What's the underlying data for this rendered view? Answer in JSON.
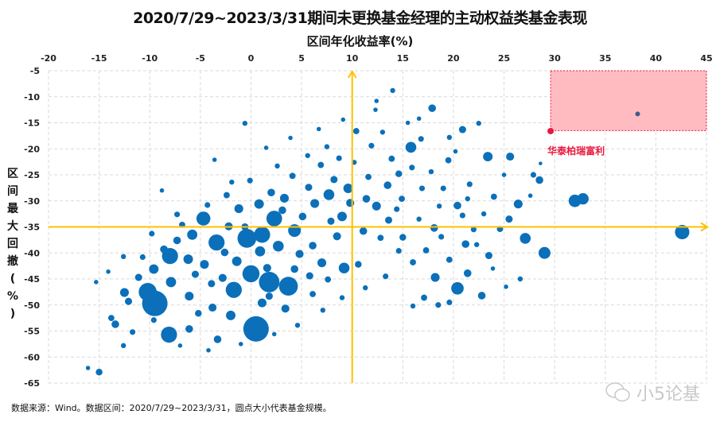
{
  "chart_data": {
    "type": "scatter",
    "title": "2020/7/29~2023/3/31期间未更换基金经理的主动权益类基金表现",
    "xlabel": "区间年化收益率(%)",
    "ylabel": "区间最大回撤(%)",
    "xlim": [
      -20,
      45
    ],
    "ylim": [
      -65,
      -5
    ],
    "xticks": [
      "-20",
      "-15",
      "-10",
      "-5",
      "0",
      "5",
      "10",
      "15",
      "20",
      "25",
      "30",
      "35",
      "40",
      "45"
    ],
    "yticks": [
      "-5",
      "-10",
      "-15",
      "-20",
      "-25",
      "-30",
      "-35",
      "-40",
      "-45",
      "-50",
      "-55",
      "-60",
      "-65"
    ],
    "x_axis_position": "top",
    "grid": true,
    "bubble_color": "#0B70B9",
    "reference_lines": {
      "x": 10,
      "y": -35,
      "color": "#FFC000"
    },
    "highlight_region": {
      "x": [
        29.6,
        45
      ],
      "y": [
        -16.5,
        -5
      ],
      "fill": "#FFBBC0",
      "border": "#E8173C"
    },
    "highlight_point": {
      "label": "华泰柏瑞富利",
      "x": 29.6,
      "y": -16.6,
      "color": "#E8173C"
    },
    "highlight_other": {
      "x": 38.2,
      "y": -13.3,
      "color": "#3F5A8C"
    },
    "points_note_fields": [
      "x",
      "y",
      "size"
    ],
    "points": [
      [
        0.5,
        -54.6,
        100
      ],
      [
        42.6,
        -36,
        32
      ],
      [
        32.0,
        -30,
        24
      ],
      [
        32.8,
        -29.6,
        20
      ],
      [
        29,
        -40,
        22
      ],
      [
        27.1,
        -37.2,
        18
      ],
      [
        15.8,
        -19.7,
        18
      ],
      [
        23.4,
        -21.5,
        14
      ],
      [
        25.6,
        -21.5,
        10
      ],
      [
        20.4,
        -46.8,
        24
      ],
      [
        18.2,
        -44.7,
        12
      ],
      [
        18.1,
        -35.2,
        9
      ],
      [
        -9.5,
        -49.7,
        100
      ],
      [
        -10.2,
        -47.5,
        50
      ],
      [
        -8.1,
        -55.7,
        40
      ],
      [
        -8,
        -40.6,
        40
      ],
      [
        -4.7,
        -33.4,
        30
      ],
      [
        -3.4,
        -38,
        40
      ],
      [
        3.7,
        -46.4,
        55
      ],
      [
        1.8,
        -45.6,
        65
      ],
      [
        -1.7,
        -47.1,
        40
      ],
      [
        0,
        -44,
        45
      ],
      [
        -0.4,
        -37.2,
        55
      ],
      [
        2.3,
        -33.4,
        38
      ],
      [
        1.1,
        -36.5,
        40
      ],
      [
        4.3,
        -35.7,
        25
      ],
      [
        7,
        -41.9,
        12
      ],
      [
        7.7,
        -28.8,
        18
      ],
      [
        9.6,
        -27.6,
        14
      ],
      [
        9.2,
        -42.9,
        18
      ],
      [
        11.4,
        -29.6,
        9
      ],
      [
        21.4,
        -43.9,
        9
      ],
      [
        22.8,
        -48.2,
        9
      ],
      [
        -3.3,
        -56.6,
        9
      ],
      [
        -12.5,
        -47.6,
        12
      ],
      [
        -13.4,
        -53.7,
        9
      ],
      [
        -15,
        -62.9,
        7
      ],
      [
        -16.1,
        -62.1,
        3
      ],
      [
        -0.6,
        -15.1,
        4
      ],
      [
        14,
        -8.8,
        4
      ],
      [
        17.9,
        -12.2,
        9
      ],
      [
        20.9,
        -16.3,
        8
      ],
      [
        22.5,
        -15.1,
        4
      ],
      [
        10.4,
        -16.6,
        6
      ],
      [
        13,
        -16.8,
        4
      ],
      [
        15.5,
        -15,
        3
      ],
      [
        12.3,
        -12.5,
        3
      ],
      [
        16.8,
        -18.1,
        5
      ],
      [
        19.6,
        -17.8,
        4
      ],
      [
        21.6,
        -26.8,
        5
      ],
      [
        20.4,
        -30.9,
        9
      ],
      [
        24,
        -29.2,
        6
      ],
      [
        26.4,
        -30.6,
        12
      ],
      [
        27.9,
        -25,
        5
      ],
      [
        28.5,
        -26,
        9
      ],
      [
        25.5,
        -33.5,
        8
      ],
      [
        22,
        -35.5,
        5
      ],
      [
        23.5,
        -40.5,
        8
      ],
      [
        21.2,
        -38.3,
        9
      ],
      [
        16,
        -41.8,
        6
      ],
      [
        14.6,
        -39.6,
        5
      ],
      [
        17.1,
        -48.6,
        6
      ],
      [
        18.5,
        -50,
        5
      ],
      [
        16,
        -50.2,
        4
      ],
      [
        26.6,
        -45,
        4
      ],
      [
        27.6,
        -29,
        3
      ],
      [
        19.5,
        -22.2,
        6
      ],
      [
        14.6,
        -24.8,
        7
      ],
      [
        13.5,
        -27,
        9
      ],
      [
        12.4,
        -31,
        12
      ],
      [
        13.6,
        -33.7,
        8
      ],
      [
        11.1,
        -35.8,
        9
      ],
      [
        9,
        -33,
        14
      ],
      [
        8.5,
        -36.8,
        10
      ],
      [
        6.3,
        -30.5,
        12
      ],
      [
        5.7,
        -27.4,
        8
      ],
      [
        4.1,
        -25.2,
        6
      ],
      [
        6.9,
        -23.1,
        6
      ],
      [
        8.7,
        -21.8,
        5
      ],
      [
        3.3,
        -29.5,
        12
      ],
      [
        2,
        -28.4,
        9
      ],
      [
        0.8,
        -30.6,
        14
      ],
      [
        -1.2,
        -31.5,
        12
      ],
      [
        -2.2,
        -34.9,
        10
      ],
      [
        -5.8,
        -36.5,
        16
      ],
      [
        -7.3,
        -37.6,
        9
      ],
      [
        -6.2,
        -41.2,
        14
      ],
      [
        -4.6,
        -42.2,
        12
      ],
      [
        -2.8,
        -44.8,
        10
      ],
      [
        -1.4,
        -41.6,
        14
      ],
      [
        0.9,
        -39.7,
        16
      ],
      [
        2.7,
        -38.7,
        18
      ],
      [
        4.8,
        -40.2,
        10
      ],
      [
        5.8,
        -44.4,
        8
      ],
      [
        3.4,
        -50.7,
        10
      ],
      [
        1.1,
        -49.6,
        12
      ],
      [
        -2,
        -52,
        14
      ],
      [
        -3.8,
        -50.5,
        10
      ],
      [
        -6.1,
        -48.3,
        12
      ],
      [
        -7.9,
        -45.6,
        16
      ],
      [
        -9.6,
        -43.1,
        14
      ],
      [
        -11.1,
        -44.7,
        8
      ],
      [
        -12.1,
        -49.3,
        8
      ],
      [
        -13.8,
        -52.5,
        6
      ],
      [
        -11.7,
        -55.2,
        5
      ],
      [
        -12.6,
        -57.8,
        4
      ],
      [
        -6.1,
        -54.6,
        9
      ],
      [
        -5.2,
        -51.6,
        7
      ],
      [
        -0.2,
        -53.6,
        6
      ],
      [
        1.8,
        -48.3,
        8
      ],
      [
        6.1,
        -47.9,
        6
      ],
      [
        7.6,
        -45.1,
        6
      ],
      [
        10.6,
        -42.2,
        7
      ],
      [
        12.8,
        -37.1,
        6
      ],
      [
        14.9,
        -29.6,
        6
      ],
      [
        16.9,
        -27.6,
        5
      ],
      [
        18.6,
        -31,
        4
      ],
      [
        11.6,
        -25.4,
        6
      ],
      [
        10.2,
        -22.6,
        4
      ],
      [
        7.5,
        -19.6,
        4
      ],
      [
        5.6,
        -21.3,
        4
      ],
      [
        2.6,
        -23.3,
        4
      ],
      [
        -0.1,
        -26.1,
        5
      ],
      [
        -2.4,
        -28.9,
        6
      ],
      [
        -4.3,
        -30.8,
        5
      ],
      [
        -7.3,
        -32.6,
        5
      ],
      [
        -9.8,
        -36.3,
        5
      ],
      [
        -12.6,
        -40.7,
        4
      ],
      [
        -14.1,
        -43.6,
        3
      ],
      [
        -15.3,
        -45.6,
        3
      ],
      [
        -8.8,
        -28,
        3
      ],
      [
        -3.6,
        -22.1,
        3
      ],
      [
        1.5,
        -19.8,
        3
      ],
      [
        3.9,
        -17.9,
        3
      ],
      [
        6.7,
        -16.2,
        3
      ],
      [
        9.1,
        -14.4,
        3
      ],
      [
        11.9,
        -19.4,
        5
      ],
      [
        13.9,
        -21.9,
        6
      ],
      [
        15.9,
        -23.6,
        5
      ],
      [
        17.8,
        -24.4,
        4
      ],
      [
        19,
        -27.6,
        5
      ],
      [
        21.4,
        -29.6,
        4
      ],
      [
        23,
        -32.5,
        4
      ],
      [
        24.6,
        -35.4,
        6
      ],
      [
        22.3,
        -38.4,
        4
      ],
      [
        19.6,
        -41.3,
        6
      ],
      [
        17.3,
        -39.5,
        6
      ],
      [
        15,
        -37,
        7
      ],
      [
        13.3,
        -44.5,
        5
      ],
      [
        11.3,
        -46.7,
        4
      ],
      [
        9,
        -48.6,
        4
      ],
      [
        7.1,
        -51,
        4
      ],
      [
        4.6,
        -53.9,
        4
      ],
      [
        2.3,
        -55.6,
        3
      ],
      [
        -1,
        -57.5,
        3
      ],
      [
        -4.2,
        -58.7,
        3
      ],
      [
        -7,
        -57.8,
        3
      ],
      [
        -9.6,
        -52.9,
        5
      ],
      [
        -2.6,
        -39.9,
        9
      ],
      [
        -0.6,
        -35,
        8
      ],
      [
        1.6,
        -42.9,
        10
      ],
      [
        4.3,
        -43.1,
        9
      ],
      [
        6.1,
        -38.6,
        9
      ],
      [
        7.9,
        -33.9,
        8
      ],
      [
        9.8,
        -30.4,
        10
      ],
      [
        8.2,
        -25.9,
        8
      ],
      [
        5.1,
        -33,
        9
      ],
      [
        3.1,
        -31.8,
        9
      ],
      [
        -3.9,
        -45.9,
        8
      ],
      [
        -5.5,
        -44.1,
        8
      ],
      [
        -8.6,
        -39.3,
        9
      ],
      [
        -10.7,
        -40.8,
        5
      ],
      [
        -6.8,
        -34.6,
        6
      ],
      [
        -1.9,
        -26.4,
        4
      ],
      [
        12.4,
        -10.8,
        3
      ],
      [
        16.6,
        -14.2,
        3
      ],
      [
        20.2,
        -20.5,
        3
      ],
      [
        25,
        -25,
        3
      ],
      [
        28.6,
        -22.8,
        2
      ],
      [
        14.4,
        -31.6,
        5
      ],
      [
        16.6,
        -33.5,
        4
      ],
      [
        18.8,
        -36.9,
        5
      ],
      [
        20.9,
        -32.8,
        5
      ],
      [
        23.9,
        -43,
        3
      ],
      [
        25.2,
        -46.5,
        3
      ],
      [
        19.6,
        -49.5,
        5
      ]
    ]
  },
  "footer": "数据来源：Wind。数据区间：2020/7/29~2023/3/31，圆点大小代表基金规模。",
  "watermark": "小5论基"
}
